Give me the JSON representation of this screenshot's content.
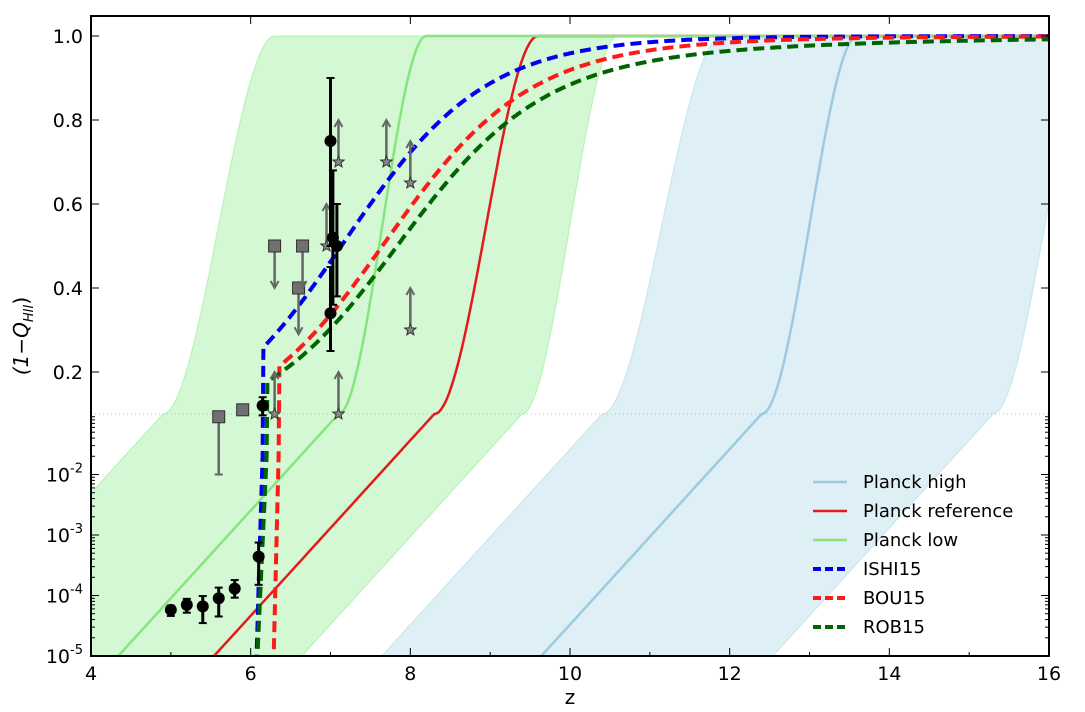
{
  "chart_data": {
    "type": "line",
    "xlabel": "z",
    "ylabel": "(1−Q_HII)",
    "ylabel_main": "(1−Q",
    "ylabel_sub": "HII",
    "ylabel_close": ")",
    "xlim": [
      4,
      16
    ],
    "y_scale": "log below 0.1 (10^-5 to 0.1), linear above (0.1 to 1.05)",
    "ylim": [
      1e-05,
      1.05
    ],
    "split_value": 0.1,
    "x_ticks": [
      "4",
      "6",
      "8",
      "10",
      "12",
      "14",
      "16"
    ],
    "x_tick_values": [
      4,
      6,
      8,
      10,
      12,
      14,
      16
    ],
    "y_linear_ticks": [
      "0.2",
      "0.4",
      "0.6",
      "0.8",
      "1.0"
    ],
    "y_linear_tick_values": [
      0.2,
      0.4,
      0.6,
      0.8,
      1.0
    ],
    "y_log_ticks": [
      {
        "base": "10",
        "exp": "-2",
        "value": 0.01
      },
      {
        "base": "10",
        "exp": "-3",
        "value": 0.001
      },
      {
        "base": "10",
        "exp": "-4",
        "value": 0.0001
      },
      {
        "base": "10",
        "exp": "-5",
        "value": 1e-05
      }
    ],
    "bands": [
      {
        "name": "Planck low band",
        "color": "#90ee90",
        "opacity": 0.4,
        "lower": {
          "z_half": 9.8,
          "z_top": 10.6,
          "k": 1.45
        },
        "upper": {
          "z_half": 5.3,
          "z_top": 6.3,
          "k": 1.45
        }
      },
      {
        "name": "Planck high band",
        "color": "#add8e6",
        "opacity": 0.4,
        "lower": {
          "z_half": 15.7,
          "z_top": 16.6,
          "k": 1.45
        },
        "upper": {
          "z_half": 10.8,
          "z_top": 11.9,
          "k": 1.45
        }
      }
    ],
    "series": [
      {
        "name": "Planck high",
        "color": "#9ecae1",
        "dash": "solid",
        "width": 2.5,
        "model": {
          "z_half": 12.8,
          "z_top": 13.6,
          "k": 1.45
        }
      },
      {
        "name": "Planck reference",
        "color": "#e31a1c",
        "dash": "solid",
        "width": 2.5,
        "model": {
          "z_half": 8.7,
          "z_top": 9.6,
          "k": 1.45
        }
      },
      {
        "name": "Planck low",
        "color": "#86e57f",
        "dash": "solid",
        "width": 2.5,
        "model": {
          "z_half": 7.5,
          "z_top": 8.2,
          "k": 1.45
        }
      },
      {
        "name": "ISHI15",
        "color": "#0000ee",
        "dash": "dashed",
        "width": 4,
        "model": {
          "z_end": 6.05,
          "z_knee": 6.15,
          "z_half": 7.1,
          "tau": 1.3
        }
      },
      {
        "name": "BOU15",
        "color": "#ff1a1a",
        "dash": "dashed",
        "width": 4,
        "model": {
          "z_end": 6.27,
          "z_knee": 6.35,
          "z_half": 7.6,
          "tau": 1.9
        }
      },
      {
        "name": "ROB15",
        "color": "#006400",
        "dash": "dashed",
        "width": 4,
        "model": {
          "z_end": 6.05,
          "z_knee": 6.2,
          "z_half": 7.75,
          "tau": 3.1
        }
      }
    ],
    "circles": [
      {
        "z": 5.0,
        "y": 5.8e-05,
        "lo": 4.6e-05,
        "hi": 6.8e-05
      },
      {
        "z": 5.2,
        "y": 7e-05,
        "lo": 5.2e-05,
        "hi": 8.8e-05
      },
      {
        "z": 5.4,
        "y": 6.6e-05,
        "lo": 3.5e-05,
        "hi": 9.8e-05
      },
      {
        "z": 5.6,
        "y": 9e-05,
        "lo": 4.5e-05,
        "hi": 0.000135
      },
      {
        "z": 5.8,
        "y": 0.00013,
        "lo": 9.2e-05,
        "hi": 0.00018
      },
      {
        "z": 6.1,
        "y": 0.00044,
        "lo": 0.00015,
        "hi": 0.00075
      },
      {
        "z": 6.15,
        "y": 0.12,
        "lo": 0.095,
        "hi": 0.14
      },
      {
        "z": 7.0,
        "y": 0.75,
        "lo": 0.5,
        "hi": 0.9
      },
      {
        "z": 7.0,
        "y": 0.34,
        "lo": 0.25,
        "hi": 0.45
      },
      {
        "z": 7.03,
        "y": 0.52,
        "lo": 0.36,
        "hi": 0.68
      },
      {
        "z": 7.08,
        "y": 0.5,
        "lo": 0.38,
        "hi": 0.6
      }
    ],
    "squares": [
      {
        "z": 5.6,
        "y": 0.09,
        "lo": 0.01,
        "direction": "down"
      },
      {
        "z": 5.9,
        "y": 0.11,
        "lo": 0.1,
        "direction": "down"
      },
      {
        "z": 6.3,
        "y": 0.5,
        "lo": 0.4,
        "direction": "down"
      },
      {
        "z": 6.6,
        "y": 0.4,
        "lo": 0.29,
        "direction": "down"
      },
      {
        "z": 6.65,
        "y": 0.5,
        "lo": 0.4,
        "direction": "down"
      }
    ],
    "stars": [
      {
        "z": 6.3,
        "y": 0.1,
        "hi": 0.2
      },
      {
        "z": 6.95,
        "y": 0.5,
        "hi": 0.6
      },
      {
        "z": 7.1,
        "y": 0.7,
        "hi": 0.8
      },
      {
        "z": 7.1,
        "y": 0.1,
        "hi": 0.2
      },
      {
        "z": 7.7,
        "y": 0.7,
        "hi": 0.8
      },
      {
        "z": 8.0,
        "y": 0.65,
        "hi": 0.75
      },
      {
        "z": 8.0,
        "y": 0.3,
        "hi": 0.4
      }
    ],
    "legend": {
      "position": "lower-right",
      "entries": [
        "Planck high",
        "Planck reference",
        "Planck low",
        "ISHI15",
        "BOU15",
        "ROB15"
      ]
    }
  }
}
